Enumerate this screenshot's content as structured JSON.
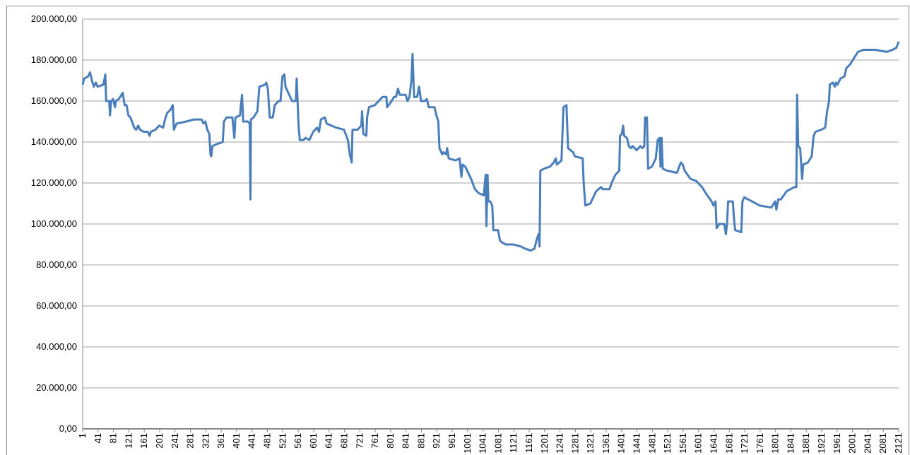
{
  "chart_data": {
    "type": "line",
    "color": "#4a7ebb",
    "grid": true,
    "x": [
      1,
      5,
      15,
      20,
      25,
      30,
      35,
      40,
      55,
      60,
      62,
      70,
      72,
      75,
      80,
      85,
      87,
      95,
      105,
      110,
      115,
      120,
      125,
      135,
      140,
      145,
      150,
      160,
      170,
      175,
      178,
      190,
      200,
      210,
      215,
      220,
      230,
      235,
      238,
      245,
      270,
      290,
      310,
      315,
      320,
      325,
      330,
      333,
      335,
      338,
      350,
      365,
      368,
      375,
      390,
      395,
      398,
      410,
      412,
      415,
      418,
      430,
      435,
      437,
      438,
      445,
      455,
      460,
      475,
      478,
      482,
      487,
      495,
      500,
      510,
      515,
      520,
      525,
      528,
      545,
      555,
      557,
      562,
      565,
      575,
      580,
      590,
      600,
      610,
      615,
      620,
      630,
      635,
      660,
      680,
      690,
      695,
      700,
      702,
      715,
      725,
      727,
      730,
      738,
      740,
      745,
      760,
      780,
      790,
      792,
      800,
      810,
      815,
      820,
      825,
      840,
      845,
      850,
      855,
      858,
      862,
      870,
      875,
      880,
      890,
      895,
      900,
      915,
      920,
      925,
      928,
      935,
      938,
      945,
      948,
      952,
      970,
      980,
      985,
      988,
      995,
      1010,
      1020,
      1030,
      1043,
      1048,
      1050,
      1053,
      1055,
      1060,
      1065,
      1068,
      1080,
      1085,
      1090,
      1100,
      1120,
      1140,
      1150,
      1165,
      1175,
      1180,
      1185,
      1188,
      1190,
      1200,
      1215,
      1225,
      1230,
      1233,
      1245,
      1250,
      1258,
      1262,
      1275,
      1280,
      1300,
      1303,
      1307,
      1320,
      1325,
      1335,
      1348,
      1352,
      1370,
      1375,
      1385,
      1395,
      1397,
      1402,
      1405,
      1408,
      1415,
      1420,
      1425,
      1430,
      1440,
      1450,
      1455,
      1460,
      1462,
      1467,
      1470,
      1480,
      1490,
      1495,
      1500,
      1502,
      1505,
      1508,
      1520,
      1545,
      1555,
      1560,
      1565,
      1580,
      1595,
      1610,
      1620,
      1635,
      1640,
      1645,
      1648,
      1655,
      1668,
      1672,
      1675,
      1678,
      1690,
      1693,
      1696,
      1712,
      1715,
      1720,
      1740,
      1760,
      1790,
      1800,
      1803,
      1808,
      1815,
      1830,
      1850,
      1855,
      1857,
      1860,
      1865,
      1870,
      1873,
      1885,
      1895,
      1900,
      1905,
      1920,
      1930,
      1935,
      1940,
      1942,
      1950,
      1955,
      1958,
      1962,
      1970,
      1980,
      1985,
      1995,
      2005,
      2015,
      2030,
      2060,
      2090,
      2105,
      2115,
      2121
    ],
    "values": [
      168000,
      171000,
      172000,
      174000,
      170000,
      167000,
      169000,
      167000,
      168000,
      173000,
      160000,
      160000,
      153000,
      160000,
      161000,
      157000,
      160000,
      161000,
      164000,
      158000,
      158000,
      153000,
      152000,
      147000,
      146000,
      148000,
      146000,
      145000,
      145000,
      143000,
      145000,
      146000,
      148000,
      147000,
      151000,
      154000,
      156000,
      158000,
      146000,
      149000,
      150000,
      151000,
      151000,
      149000,
      150000,
      146000,
      144000,
      134000,
      133000,
      138000,
      139000,
      140000,
      150000,
      152000,
      152000,
      142000,
      152000,
      153000,
      158000,
      163000,
      150000,
      150000,
      149000,
      112000,
      151000,
      152000,
      155000,
      167000,
      168000,
      169000,
      166000,
      152000,
      152000,
      158000,
      160000,
      160000,
      172000,
      173000,
      167000,
      160000,
      160000,
      171000,
      148000,
      141000,
      141000,
      142000,
      141000,
      145000,
      147000,
      145000,
      151000,
      152000,
      149000,
      147000,
      146000,
      141000,
      134000,
      130000,
      146000,
      146000,
      148000,
      155000,
      144000,
      143000,
      152000,
      157000,
      158000,
      162000,
      162000,
      157000,
      159000,
      162000,
      162000,
      166000,
      163000,
      163000,
      160000,
      162000,
      170000,
      183000,
      162000,
      162000,
      167000,
      160000,
      160000,
      161000,
      157000,
      157000,
      153000,
      150000,
      137000,
      134000,
      135000,
      134000,
      137000,
      132000,
      131000,
      132000,
      123000,
      129000,
      128000,
      122000,
      117000,
      115000,
      114000,
      124000,
      99000,
      124000,
      111000,
      111000,
      109000,
      97000,
      97000,
      92000,
      91000,
      90000,
      90000,
      89000,
      88000,
      87000,
      88000,
      92000,
      95000,
      89000,
      126000,
      127000,
      128000,
      130000,
      132000,
      129000,
      131000,
      157000,
      158000,
      137000,
      135000,
      133000,
      132000,
      119000,
      109000,
      110000,
      112000,
      116000,
      118000,
      117000,
      117000,
      120000,
      124000,
      126000,
      143000,
      144000,
      148000,
      143000,
      142000,
      138000,
      137000,
      138000,
      136000,
      138000,
      137000,
      138000,
      152000,
      152000,
      127000,
      128000,
      132000,
      141000,
      142000,
      128000,
      142000,
      127000,
      126000,
      125000,
      130000,
      129000,
      126000,
      122000,
      121000,
      118000,
      115000,
      111000,
      109000,
      111000,
      98000,
      100000,
      100000,
      95000,
      100000,
      111000,
      111000,
      103000,
      97000,
      96000,
      111000,
      113000,
      111000,
      109000,
      108000,
      111000,
      107000,
      112000,
      112000,
      116000,
      118000,
      118000,
      163000,
      138000,
      137000,
      122000,
      129000,
      130000,
      133000,
      143000,
      145000,
      146000,
      147000,
      155000,
      160000,
      168000,
      169000,
      167000,
      169000,
      168000,
      171000,
      172000,
      176000,
      178000,
      181000,
      184000,
      185000,
      185000,
      184000,
      185000,
      186000,
      189000
    ],
    "xlim": [
      1,
      2121
    ],
    "xticks": [
      1,
      41,
      81,
      121,
      161,
      201,
      241,
      281,
      321,
      361,
      401,
      441,
      481,
      521,
      561,
      601,
      641,
      681,
      721,
      761,
      801,
      841,
      881,
      921,
      961,
      1001,
      1041,
      1081,
      1121,
      1161,
      1201,
      1241,
      1281,
      1321,
      1361,
      1401,
      1441,
      1481,
      1521,
      1561,
      1601,
      1641,
      1681,
      1721,
      1761,
      1801,
      1841,
      1881,
      1921,
      1961,
      2001,
      2041,
      2081,
      2121
    ],
    "ylim": [
      0,
      200000
    ],
    "yticks": [
      {
        "value": 0,
        "label": "0,00"
      },
      {
        "value": 20000,
        "label": "20.000,00"
      },
      {
        "value": 40000,
        "label": "40.000,00"
      },
      {
        "value": 60000,
        "label": "60.000,00"
      },
      {
        "value": 80000,
        "label": "80.000,00"
      },
      {
        "value": 100000,
        "label": "100.000,00"
      },
      {
        "value": 120000,
        "label": "120.000,00"
      },
      {
        "value": 140000,
        "label": "140.000,00"
      },
      {
        "value": 160000,
        "label": "160.000,00"
      },
      {
        "value": 180000,
        "label": "180.000,00"
      },
      {
        "value": 200000,
        "label": "200.000,00"
      }
    ]
  }
}
